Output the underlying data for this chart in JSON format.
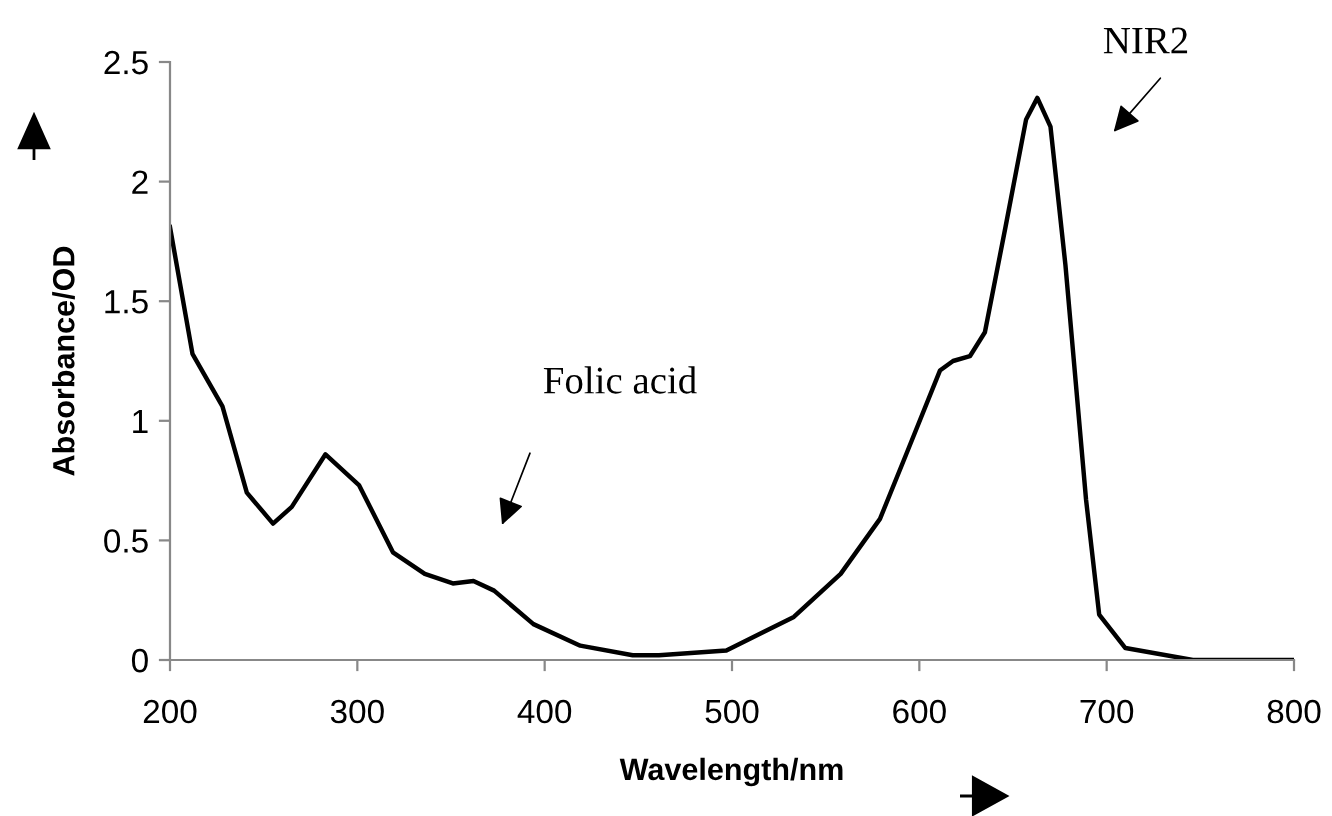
{
  "chart_data": {
    "type": "line",
    "xlabel": "Wavelength/nm",
    "ylabel": "Absorbance/OD",
    "series": [
      {
        "color": "#000000",
        "x": [
          200,
          212,
          228,
          241,
          255,
          265,
          283,
          301,
          319,
          336,
          351,
          362,
          373,
          394,
          419,
          447,
          461,
          497,
          533,
          558,
          579,
          593,
          611,
          618,
          627,
          635,
          646,
          657,
          663,
          670,
          678,
          689,
          696,
          710,
          746,
          800
        ],
        "values": [
          1.81,
          1.28,
          1.06,
          0.7,
          0.57,
          0.64,
          0.86,
          0.73,
          0.45,
          0.36,
          0.32,
          0.33,
          0.29,
          0.15,
          0.06,
          0.02,
          0.02,
          0.04,
          0.18,
          0.36,
          0.59,
          0.86,
          1.21,
          1.25,
          1.27,
          1.37,
          1.81,
          2.26,
          2.35,
          2.23,
          1.65,
          0.67,
          0.19,
          0.05,
          0.0,
          0.0
        ]
      }
    ],
    "annotations": [
      "Folic acid",
      "NIR2"
    ],
    "xlim": [
      200,
      800
    ],
    "xticks": [
      200,
      300,
      400,
      500,
      600,
      700,
      800
    ],
    "ylim": [
      0,
      2.5
    ],
    "yticks": [
      0,
      0.5,
      1,
      1.5,
      2,
      2.5
    ],
    "grid": false,
    "legend": false,
    "marker": "none",
    "line_style": "solid"
  }
}
